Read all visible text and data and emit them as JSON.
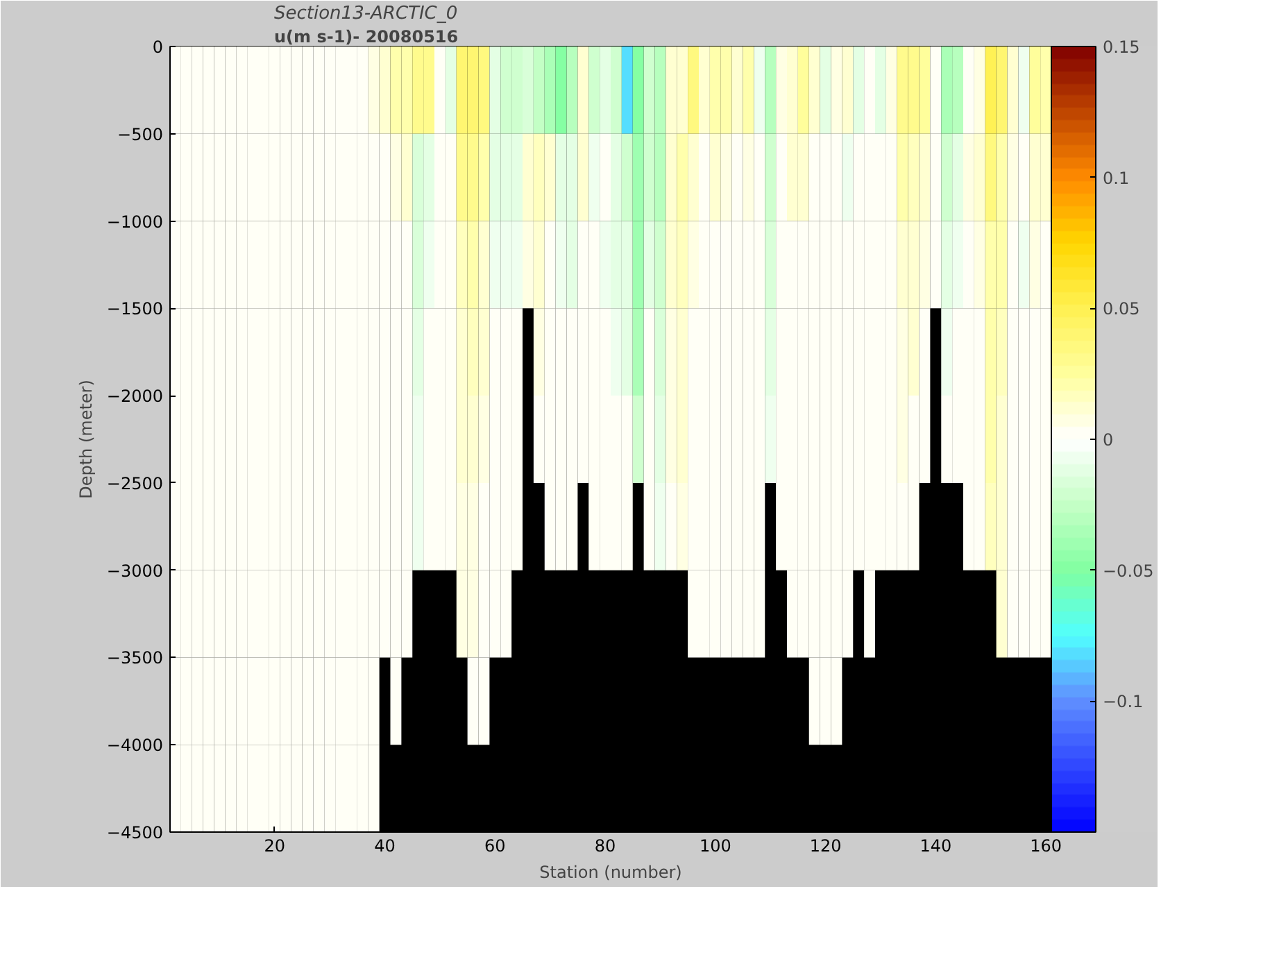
{
  "chart_data": {
    "type": "heatmap",
    "title": "Section13-ARCTIC_0",
    "subtitle": "u(m s-1)- 20080516",
    "xlabel": "Station (number)",
    "ylabel": "Depth (meter)",
    "x": [
      2,
      4,
      6,
      8,
      10,
      12,
      14,
      16,
      18,
      20,
      22,
      24,
      26,
      28,
      30,
      32,
      34,
      36,
      38,
      40,
      42,
      44,
      46,
      48,
      50,
      52,
      54,
      56,
      58,
      60,
      62,
      64,
      66,
      68,
      70,
      72,
      74,
      76,
      78,
      80,
      82,
      84,
      86,
      88,
      90,
      92,
      94,
      96,
      98,
      100,
      102,
      104,
      106,
      108,
      110,
      112,
      114,
      116,
      118,
      120,
      122,
      124,
      126,
      128,
      130,
      132,
      134,
      136,
      138,
      140,
      142,
      144,
      146,
      148,
      150,
      152,
      154,
      156,
      158,
      160
    ],
    "y": [
      -250,
      -750,
      -1250,
      -1750,
      -2250,
      -2750,
      -3250,
      -3750,
      -4250
    ],
    "cells": [
      [
        0,
        0,
        0,
        0,
        0,
        0,
        0,
        0,
        0,
        0,
        0,
        0,
        0,
        0,
        0,
        0,
        0,
        0,
        0.005,
        0.01,
        0.02,
        0.02,
        0.03,
        0.03,
        0,
        -0.01,
        0.04,
        0.04,
        0.035,
        -0.01,
        -0.02,
        -0.02,
        -0.015,
        -0.025,
        -0.035,
        -0.05,
        -0.03,
        0.01,
        -0.02,
        -0.01,
        -0.02,
        -0.08,
        -0.05,
        -0.02,
        -0.03,
        0.01,
        0.01,
        0.035,
        0.01,
        0.02,
        0.02,
        0.01,
        0.02,
        -0.005,
        -0.03,
        0.005,
        0.01,
        0.025,
        0.01,
        -0.01,
        0.005,
        0.01,
        -0.01,
        0,
        -0.01,
        0.005,
        0.03,
        0.03,
        0.025,
        0,
        -0.035,
        -0.03,
        0,
        0.005,
        0.05,
        0.04,
        0.01,
        -0.005,
        0.025,
        0.02
      ],
      [
        0,
        0,
        0,
        0,
        0,
        0,
        0,
        0,
        0,
        0,
        0,
        0,
        0,
        0,
        0,
        0,
        0,
        0,
        0,
        0,
        0.005,
        0.01,
        -0.015,
        -0.01,
        0,
        0,
        0.03,
        0.03,
        0.02,
        -0.01,
        -0.01,
        -0.01,
        0.01,
        0.015,
        0.01,
        -0.01,
        -0.01,
        0.01,
        -0.005,
        0,
        -0.01,
        -0.02,
        -0.04,
        -0.02,
        -0.03,
        0.01,
        0.02,
        0.01,
        0,
        0.01,
        0.005,
        0,
        0.005,
        0,
        -0.02,
        0,
        0.01,
        0.01,
        0,
        0,
        0,
        -0.005,
        0,
        0,
        0,
        0,
        0.02,
        0.015,
        0.01,
        0,
        -0.02,
        -0.01,
        0.005,
        0.01,
        0.035,
        0.02,
        0.005,
        0,
        0.01,
        0.01
      ],
      [
        0,
        0,
        0,
        0,
        0,
        0,
        0,
        0,
        0,
        0,
        0,
        0,
        0,
        0,
        0,
        0,
        0,
        0,
        0,
        0,
        0,
        0,
        -0.015,
        -0.005,
        0,
        0,
        0.015,
        0.02,
        0.01,
        -0.005,
        -0.005,
        -0.005,
        0.005,
        0.01,
        0,
        -0.005,
        -0.01,
        0,
        0,
        -0.005,
        -0.01,
        -0.01,
        -0.04,
        -0.01,
        -0.02,
        0.01,
        0.015,
        0.005,
        0,
        0,
        0,
        0,
        0,
        0,
        -0.015,
        0,
        0,
        0,
        0,
        0,
        0,
        0,
        0,
        0,
        0,
        0,
        0.01,
        0.01,
        0.005,
        0,
        -0.01,
        -0.005,
        0,
        0.005,
        0.02,
        0.02,
        0,
        -0.005,
        0.005,
        0
      ],
      [
        0,
        0,
        0,
        0,
        0,
        0,
        0,
        0,
        0,
        0,
        0,
        0,
        0,
        0,
        0,
        0,
        0,
        0,
        0,
        0,
        0,
        0,
        -0.01,
        0,
        0,
        0,
        0.01,
        0.015,
        0.01,
        0,
        0,
        0,
        null,
        0.005,
        0,
        0,
        0,
        0,
        0,
        0,
        -0.005,
        -0.01,
        -0.035,
        0,
        -0.015,
        0.005,
        0.01,
        0,
        0,
        0,
        0,
        0,
        0,
        0,
        -0.01,
        0,
        0,
        0,
        0,
        0,
        0,
        0,
        0,
        0,
        0,
        0,
        0.005,
        0.01,
        0,
        null,
        -0.005,
        0,
        0,
        0,
        0.02,
        0.015,
        0,
        0,
        0,
        0
      ],
      [
        0,
        0,
        0,
        0,
        0,
        0,
        0,
        0,
        0,
        0,
        0,
        0,
        0,
        0,
        0,
        0,
        0,
        0,
        0,
        0,
        0,
        0,
        -0.005,
        0,
        0,
        0,
        0.01,
        0.01,
        0.005,
        0,
        0,
        0,
        null,
        0,
        0,
        0,
        0,
        0,
        0,
        0,
        0,
        0,
        -0.02,
        0,
        -0.01,
        0.005,
        0.01,
        0,
        0,
        0,
        0,
        0,
        0,
        0,
        -0.005,
        0,
        0,
        0,
        0,
        0,
        0,
        0,
        0,
        0,
        0,
        0,
        0.005,
        0,
        0,
        null,
        0,
        0,
        0,
        0,
        0.02,
        0.01,
        0,
        0,
        0,
        0
      ],
      [
        0,
        0,
        0,
        0,
        0,
        0,
        0,
        0,
        0,
        0,
        0,
        0,
        0,
        0,
        0,
        0,
        0,
        0,
        0,
        0,
        0,
        0,
        -0.005,
        0,
        0,
        0,
        0.005,
        0.005,
        0,
        0,
        0,
        0,
        null,
        null,
        0,
        0,
        0,
        null,
        0,
        0,
        0,
        0,
        null,
        0,
        -0.005,
        0,
        0.005,
        0,
        0,
        0,
        0,
        0,
        0,
        0,
        null,
        0,
        0,
        0,
        0,
        0,
        0,
        0,
        0,
        0,
        0,
        0,
        0,
        0,
        null,
        null,
        null,
        null,
        0,
        0,
        0.015,
        0.01,
        0,
        0,
        0,
        0
      ],
      [
        0,
        0,
        0,
        0,
        0,
        0,
        0,
        0,
        0,
        0,
        0,
        0,
        0,
        0,
        0,
        0,
        0,
        0,
        0,
        0,
        0,
        0,
        null,
        null,
        null,
        null,
        0.005,
        0.005,
        0,
        0,
        0,
        null,
        null,
        null,
        null,
        null,
        null,
        null,
        null,
        null,
        null,
        null,
        null,
        null,
        null,
        null,
        null,
        0,
        0,
        0,
        0,
        0,
        0,
        0,
        null,
        null,
        0,
        0,
        0,
        0,
        0,
        0,
        null,
        0,
        null,
        null,
        null,
        null,
        null,
        null,
        null,
        null,
        null,
        null,
        null,
        0.01,
        0,
        0,
        0,
        0
      ],
      [
        0,
        0,
        0,
        0,
        0,
        0,
        0,
        0,
        0,
        0,
        0,
        0,
        0,
        0,
        0,
        0,
        0,
        0,
        0,
        null,
        0,
        null,
        null,
        null,
        null,
        null,
        null,
        0,
        0,
        null,
        null,
        null,
        null,
        null,
        null,
        null,
        null,
        null,
        null,
        null,
        null,
        null,
        null,
        null,
        null,
        null,
        null,
        null,
        null,
        null,
        null,
        null,
        null,
        null,
        null,
        null,
        null,
        null,
        0,
        0,
        0,
        null,
        null,
        null,
        null,
        null,
        null,
        null,
        null,
        null,
        null,
        null,
        null,
        null,
        null,
        null,
        null,
        null,
        null,
        null
      ],
      [
        0,
        0,
        0,
        0,
        0,
        0,
        0,
        0,
        0,
        0,
        0,
        0,
        0,
        0,
        0,
        0,
        0,
        0,
        0,
        null,
        null,
        null,
        null,
        null,
        null,
        null,
        null,
        null,
        null,
        null,
        null,
        null,
        null,
        null,
        null,
        null,
        null,
        null,
        null,
        null,
        null,
        null,
        null,
        null,
        null,
        null,
        null,
        null,
        null,
        null,
        null,
        null,
        null,
        null,
        null,
        null,
        null,
        null,
        null,
        null,
        null,
        null,
        null,
        null,
        null,
        null,
        null,
        null,
        null,
        null,
        null,
        null,
        null,
        null,
        null,
        null,
        null,
        null,
        null,
        null
      ]
    ],
    "xlim": [
      1,
      161
    ],
    "xticks": [
      20,
      40,
      60,
      80,
      100,
      120,
      140,
      160
    ],
    "ylim": [
      -4500,
      0
    ],
    "yticks": [
      -4500,
      -4000,
      -3500,
      -3000,
      -2500,
      -2000,
      -1500,
      -1000,
      -500,
      0
    ],
    "clim": [
      -0.15,
      0.15
    ],
    "cticks": [
      -0.1,
      -0.05,
      0,
      0.05,
      0.1,
      0.15
    ]
  }
}
